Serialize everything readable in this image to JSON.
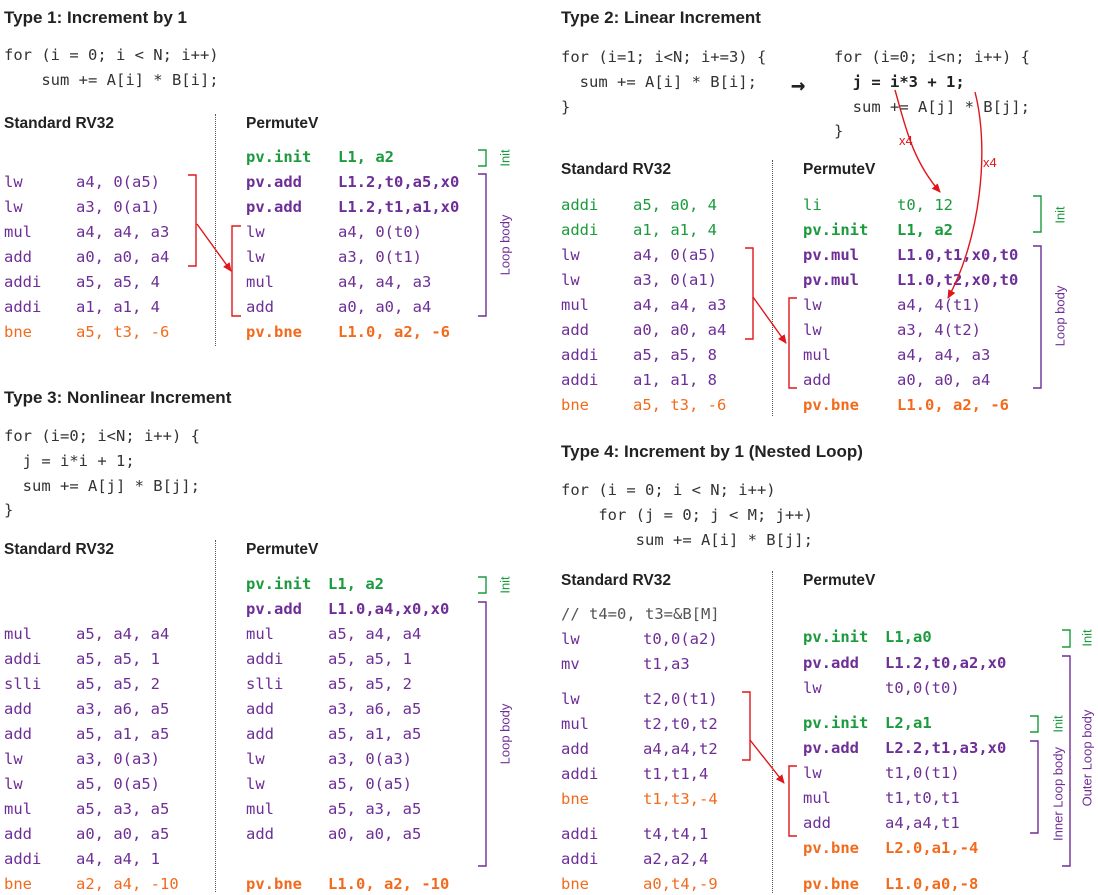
{
  "type1": {
    "title": "Type 1: Increment by 1",
    "src": [
      "for (i = 0; i < N; i++)",
      "    sum += A[i] * B[i];"
    ],
    "std_header": "Standard RV32",
    "pv_header": "PermuteV",
    "std": [
      [
        "lw",
        "a4, 0(a5)"
      ],
      [
        "lw",
        "a3, 0(a1)"
      ],
      [
        "mul",
        "a4, a4, a3"
      ],
      [
        "add",
        "a0, a0, a4"
      ],
      [
        "addi",
        "a5, a5, 4"
      ],
      [
        "addi",
        "a1, a1, 4"
      ],
      [
        "bne",
        "a5, t3, -6"
      ]
    ],
    "pv": [
      [
        "pv.init",
        "L1, a2"
      ],
      [
        "pv.add",
        "L1.2,t0,a5,x0"
      ],
      [
        "pv.add",
        "L1.2,t1,a1,x0"
      ],
      [
        "lw",
        "a4, 0(t0)"
      ],
      [
        "lw",
        "a3, 0(t1)"
      ],
      [
        "mul",
        "a4, a4, a3"
      ],
      [
        "add",
        "a0, a0, a4"
      ],
      [
        "pv.bne",
        "L1.0, a2, -6"
      ]
    ],
    "init_label": "Init",
    "body_label": "Loop body"
  },
  "type2": {
    "title": "Type 2: Linear Increment",
    "src_left": [
      "for (i=1; i<N; i+=3) {",
      "  sum += A[i] * B[i];",
      "}"
    ],
    "src_right": [
      "for (i=0; i<n; i++) {",
      "  j = i*3 + 1;",
      "  sum += A[j] * B[j];",
      "}"
    ],
    "arrow_glyph": "→",
    "x4": "x4",
    "std_header": "Standard RV32",
    "pv_header": "PermuteV",
    "std": [
      [
        "addi",
        "a5, a0, 4"
      ],
      [
        "addi",
        "a1, a1, 4"
      ],
      [
        "lw",
        "a4, 0(a5)"
      ],
      [
        "lw",
        "a3, 0(a1)"
      ],
      [
        "mul",
        "a4, a4, a3"
      ],
      [
        "add",
        "a0, a0, a4"
      ],
      [
        "addi",
        "a5, a5, 8"
      ],
      [
        "addi",
        "a1, a1, 8"
      ],
      [
        "bne",
        "a5, t3, -6"
      ]
    ],
    "pv": [
      [
        "li",
        "t0, 12"
      ],
      [
        "pv.init",
        "L1, a2"
      ],
      [
        "pv.mul",
        "L1.0,t1,x0,t0"
      ],
      [
        "pv.mul",
        "L1.0,t2,x0,t0"
      ],
      [
        "lw",
        "a4, 4(t1)"
      ],
      [
        "lw",
        "a3, 4(t2)"
      ],
      [
        "mul",
        "a4, a4, a3"
      ],
      [
        "add",
        "a0, a0, a4"
      ],
      [
        "pv.bne",
        "L1.0, a2, -6"
      ]
    ],
    "init_label": "Init",
    "body_label": "Loop body"
  },
  "type3": {
    "title": "Type 3: Nonlinear Increment",
    "src": [
      "for (i=0; i<N; i++) {",
      "  j = i*i + 1;",
      "  sum += A[j] * B[j];",
      "}"
    ],
    "std_header": "Standard RV32",
    "pv_header": "PermuteV",
    "std": [
      [
        "mul",
        "a5, a4, a4"
      ],
      [
        "addi",
        "a5, a5, 1"
      ],
      [
        "slli",
        "a5, a5, 2"
      ],
      [
        "add",
        "a3, a6, a5"
      ],
      [
        "add",
        "a5, a1, a5"
      ],
      [
        "lw",
        "a3, 0(a3)"
      ],
      [
        "lw",
        "a5, 0(a5)"
      ],
      [
        "mul",
        "a5, a3, a5"
      ],
      [
        "add",
        "a0, a0, a5"
      ],
      [
        "addi",
        "a4, a4, 1"
      ],
      [
        "bne",
        "a2, a4, -10"
      ]
    ],
    "pv": [
      [
        "pv.init",
        "L1, a2"
      ],
      [
        "pv.add",
        "L1.0,a4,x0,x0"
      ],
      [
        "mul",
        "a5, a4, a4"
      ],
      [
        "addi",
        "a5, a5, 1"
      ],
      [
        "slli",
        "a5, a5, 2"
      ],
      [
        "add",
        "a3, a6, a5"
      ],
      [
        "add",
        "a5, a1, a5"
      ],
      [
        "lw",
        "a3, 0(a3)"
      ],
      [
        "lw",
        "a5, 0(a5)"
      ],
      [
        "mul",
        "a5, a3, a5"
      ],
      [
        "add",
        "a0, a0, a5"
      ],
      [
        "pv.bne",
        "L1.0, a2, -10"
      ]
    ],
    "init_label": "Init",
    "body_label": "Loop body"
  },
  "type4": {
    "title": "Type 4: Increment by 1 (Nested Loop)",
    "src": [
      "for (i = 0; i < N; i++)",
      "    for (j = 0; j < M; j++)",
      "        sum += A[i] * B[j];"
    ],
    "std_header": "Standard RV32",
    "pv_header": "PermuteV",
    "comment": "// t4=0, t3=&B[M]",
    "std": [
      [
        "lw",
        "t0,0(a2)"
      ],
      [
        "mv",
        "t1,a3"
      ],
      [
        "lw",
        "t2,0(t1)"
      ],
      [
        "mul",
        "t2,t0,t2"
      ],
      [
        "add",
        "a4,a4,t2"
      ],
      [
        "addi",
        "t1,t1,4"
      ],
      [
        "bne",
        "t1,t3,-4"
      ],
      [
        "addi",
        "t4,t4,1"
      ],
      [
        "addi",
        "a2,a2,4"
      ],
      [
        "bne",
        "a0,t4,-9"
      ]
    ],
    "pv": [
      [
        "pv.init",
        "L1,a0"
      ],
      [
        "pv.add",
        "L1.2,t0,a2,x0"
      ],
      [
        "lw",
        "t0,0(t0)"
      ],
      [
        "pv.init",
        "L2,a1"
      ],
      [
        "pv.add",
        "L2.2,t1,a3,x0"
      ],
      [
        "lw",
        "t1,0(t1)"
      ],
      [
        "mul",
        "t1,t0,t1"
      ],
      [
        "add",
        "a4,a4,t1"
      ],
      [
        "pv.bne",
        "L2.0,a1,-4"
      ],
      [
        "pv.bne",
        "L1.0,a0,-8"
      ]
    ],
    "init_label": "Init",
    "inner_label": "Inner Loop body",
    "outer_label": "Outer Loop body"
  },
  "colors": {
    "green": "#1a9b3c",
    "purple": "#6e2e97",
    "orange": "#f26b1d",
    "red": "#e0161c"
  }
}
